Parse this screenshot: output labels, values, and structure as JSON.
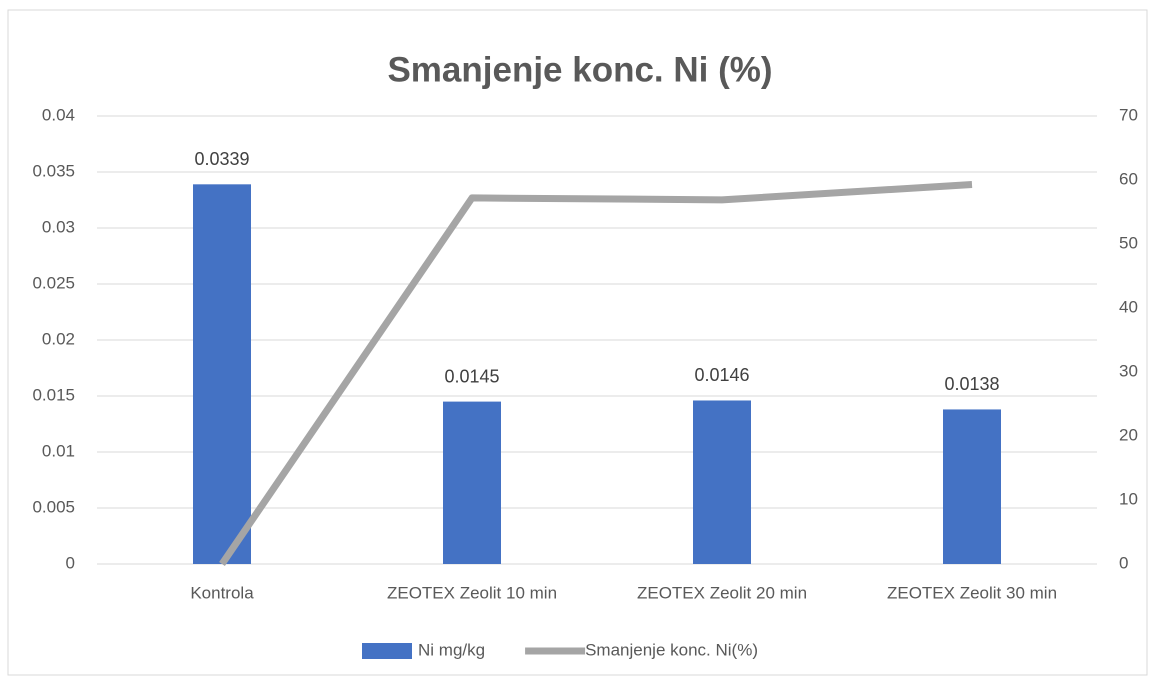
{
  "chart_data": {
    "type": "combo",
    "title": "Smanjenje konc. Ni (%)",
    "categories": [
      "Kontrola",
      "ZEOTEX Zeolit 10 min",
      "ZEOTEX Zeolit 20 min",
      "ZEOTEX Zeolit 30 min"
    ],
    "series": [
      {
        "name": "Ni mg/kg",
        "type": "bar",
        "color": "#4472c4",
        "values": [
          0.0339,
          0.0145,
          0.0146,
          0.0138
        ],
        "data_labels": true
      },
      {
        "name": "Smanjenje konc. Ni(%)",
        "type": "line",
        "color": "#a5a5a5",
        "axis": "y2",
        "values": [
          0,
          57.2,
          56.9,
          59.3
        ]
      }
    ],
    "ylim": [
      0,
      0.04
    ],
    "yticks": [
      0,
      0.005,
      0.01,
      0.015,
      0.02,
      0.025,
      0.03,
      0.035,
      0.04
    ],
    "y2lim": [
      0,
      70
    ],
    "y2ticks": [
      0,
      10,
      20,
      30,
      40,
      50,
      60,
      70
    ],
    "grid": true,
    "legend": "bottom"
  }
}
